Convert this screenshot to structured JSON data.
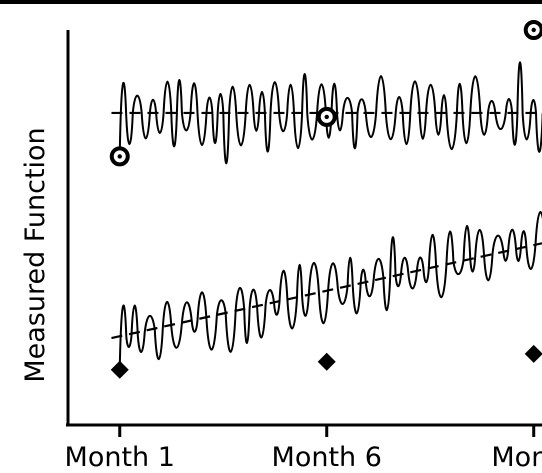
{
  "chart_data": {
    "type": "line",
    "title": "",
    "xlabel": "",
    "ylabel": "Measured Function",
    "x_categories": [
      {
        "x": 1,
        "label": "Month 1"
      },
      {
        "x": 6,
        "label": "Month 6"
      },
      {
        "x": 11,
        "label": "Month"
      }
    ],
    "xlim": [
      -0.25,
      11.2
    ],
    "ylim": [
      0,
      10
    ],
    "grid": false,
    "legend": "none",
    "series": [
      {
        "kind": "oscillating signal",
        "baseline": 7.9,
        "amplitude": 1.1,
        "color": "#000000",
        "markers": [
          {
            "x": 1.0,
            "y": 6.8,
            "shape": "circle"
          },
          {
            "x": 6.0,
            "y": 7.8,
            "shape": "circle"
          },
          {
            "x": 11.0,
            "y": 10.0,
            "shape": "circle"
          }
        ]
      },
      {
        "kind": "oscillating signal",
        "baseline_start": 2.2,
        "baseline_end": 4.6,
        "amplitude": 1.0,
        "color": "#000000",
        "markers": [
          {
            "x": 1.0,
            "y": 1.4,
            "shape": "diamond"
          },
          {
            "x": 6.0,
            "y": 1.6,
            "shape": "diamond"
          },
          {
            "x": 11.0,
            "y": 1.8,
            "shape": "diamond"
          }
        ]
      }
    ],
    "trend_lines": [
      {
        "style": "dashed",
        "x": [
          0.8,
          11.2
        ],
        "y": [
          7.9,
          7.9
        ]
      },
      {
        "style": "dashed",
        "x": [
          0.8,
          11.2
        ],
        "y": [
          2.2,
          4.6
        ]
      }
    ]
  }
}
